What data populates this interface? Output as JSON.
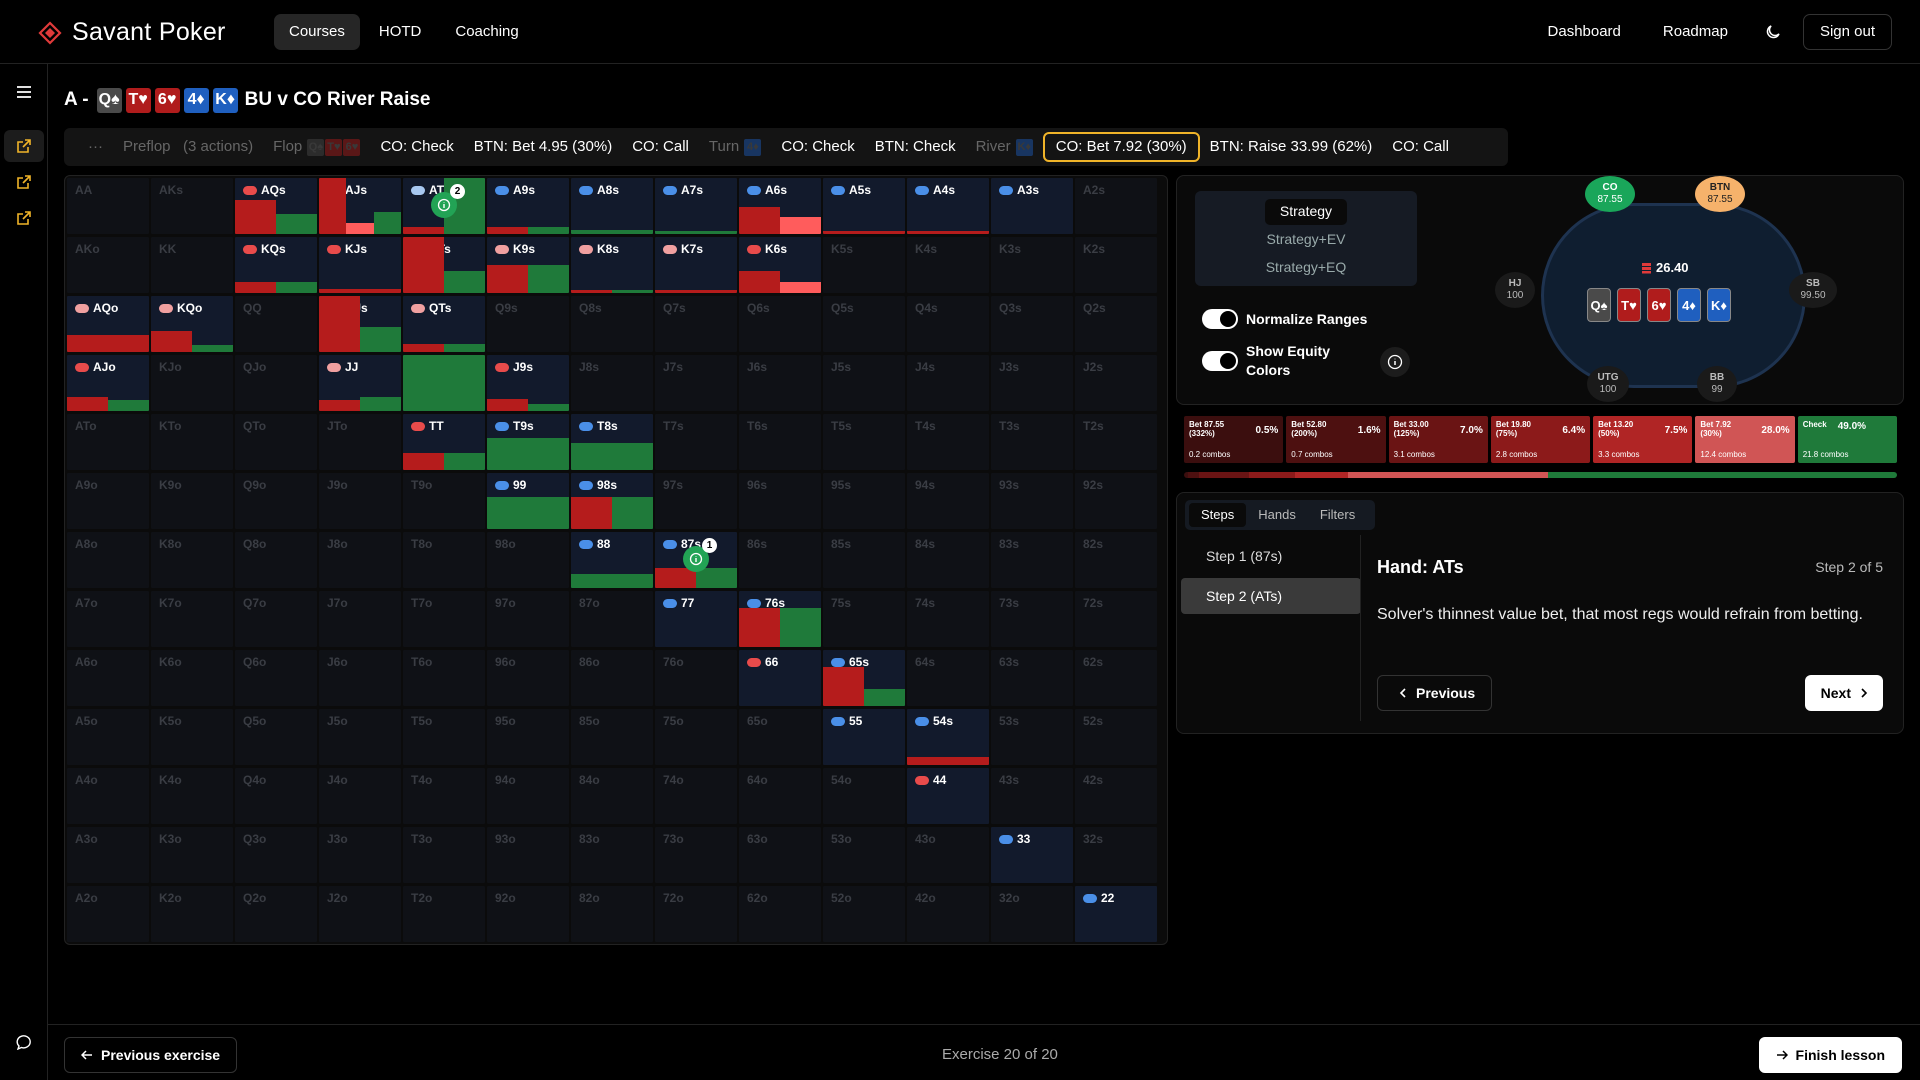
{
  "header": {
    "brand": "Savant Poker",
    "nav": [
      "Courses",
      "HOTD",
      "Coaching"
    ],
    "right_nav": [
      "Dashboard",
      "Roadmap"
    ],
    "sign_out": "Sign out"
  },
  "title": {
    "prefix": "A -",
    "cards": [
      {
        "r": "Q",
        "s": "♠",
        "c": "s"
      },
      {
        "r": "T",
        "s": "♥",
        "c": "h"
      },
      {
        "r": "6",
        "s": "♥",
        "c": "h"
      },
      {
        "r": "4",
        "s": "♦",
        "c": "d"
      },
      {
        "r": "K",
        "s": "♦",
        "c": "d"
      }
    ],
    "text": "BU v CO River Raise"
  },
  "actions": {
    "ellipsis": "···",
    "preflop": "Preflop",
    "preflop_count": "(3 actions)",
    "flop": "Flop",
    "flop_cards": [
      "Q♠",
      "T♥",
      "6♥"
    ],
    "turn": "Turn",
    "turn_card": "4♦",
    "river": "River",
    "river_card": "K♦",
    "flop_actions": [
      "CO: Check",
      "BTN: Bet 4.95 (30%)",
      "CO: Call"
    ],
    "turn_actions": [
      "CO: Check",
      "BTN: Check"
    ],
    "river_actions": [
      "CO: Bet 7.92 (30%)",
      "BTN: Raise 33.99 (62%)",
      "CO: Call"
    ]
  },
  "grid": {
    "ranks": [
      "A",
      "K",
      "Q",
      "J",
      "T",
      "9",
      "8",
      "7",
      "6",
      "5",
      "4",
      "3",
      "2"
    ],
    "cells": {
      "AQs": {
        "dot": "r",
        "bars": [
          [
            "#b51c1c",
            60
          ],
          [
            "#1f7a3a",
            35
          ]
        ]
      },
      "AJs": {
        "dot": "r",
        "bars": [
          [
            "#b51c1c",
            100
          ],
          [
            "#ff5c5c",
            20
          ],
          [
            "#1f7a3a",
            40
          ]
        ]
      },
      "ATs": {
        "dot": "lb",
        "bars": [
          [
            "#b51c1c",
            12
          ],
          [
            "#1f7a3a",
            100
          ]
        ],
        "marker": "2"
      },
      "A9s": {
        "dot": "b",
        "bars": [
          [
            "#b51c1c",
            12
          ],
          [
            "#1f7a3a",
            12
          ]
        ]
      },
      "A8s": {
        "dot": "b",
        "bars": [
          [
            "#1f7a3a",
            8
          ]
        ]
      },
      "A7s": {
        "dot": "b",
        "bars": [
          [
            "#1f7a3a",
            6
          ]
        ]
      },
      "A6s": {
        "dot": "b",
        "bars": [
          [
            "#b51c1c",
            48
          ],
          [
            "#ff5c5c",
            30
          ]
        ]
      },
      "A5s": {
        "dot": "b",
        "bars": [
          [
            "#b51c1c",
            5
          ]
        ]
      },
      "A4s": {
        "dot": "b",
        "bars": [
          [
            "#b51c1c",
            5
          ]
        ]
      },
      "A3s": {
        "dot": "b",
        "bars": []
      },
      "KQs": {
        "dot": "r",
        "bars": [
          [
            "#b51c1c",
            20
          ],
          [
            "#1f7a3a",
            20
          ]
        ]
      },
      "KJs": {
        "dot": "r",
        "bars": [
          [
            "#b51c1c",
            8
          ]
        ]
      },
      "KTs": {
        "dot": "r",
        "bars": [
          [
            "#b51c1c",
            100
          ],
          [
            "#1f7a3a",
            40
          ]
        ]
      },
      "K9s": {
        "dot": "p",
        "bars": [
          [
            "#b51c1c",
            50
          ],
          [
            "#1f7a3a",
            50
          ]
        ]
      },
      "K8s": {
        "dot": "p",
        "bars": [
          [
            "#b51c1c",
            6
          ],
          [
            "#1f7a3a",
            6
          ]
        ]
      },
      "K7s": {
        "dot": "p",
        "bars": [
          [
            "#b51c1c",
            6
          ]
        ]
      },
      "K6s": {
        "dot": "r",
        "bars": [
          [
            "#b51c1c",
            40
          ],
          [
            "#ff5c5c",
            20
          ]
        ]
      },
      "AKo": {
        "out": true
      },
      "AQo": {
        "dot": "p",
        "bars": [
          [
            "#b51c1c",
            30
          ]
        ]
      },
      "KQo": {
        "dot": "p",
        "bars": [
          [
            "#b51c1c",
            38
          ],
          [
            "#1f7a3a",
            12
          ]
        ]
      },
      "QJs": {
        "dot": "p",
        "bars": [
          [
            "#b51c1c",
            100
          ],
          [
            "#1f7a3a",
            45
          ]
        ]
      },
      "QTs": {
        "dot": "p",
        "bars": [
          [
            "#b51c1c",
            15
          ],
          [
            "#1f7a3a",
            15
          ]
        ]
      },
      "AJo": {
        "dot": "r",
        "bars": [
          [
            "#b51c1c",
            25
          ],
          [
            "#1f7a3a",
            20
          ]
        ]
      },
      "JJ": {
        "dot": "p",
        "bars": [
          [
            "#b51c1c",
            20
          ],
          [
            "#1f7a3a",
            25
          ]
        ]
      },
      "JTs": {
        "dot": "lb",
        "bars": [
          [
            "#1f7a3a",
            100
          ]
        ]
      },
      "J9s": {
        "dot": "r",
        "bars": [
          [
            "#b51c1c",
            22
          ],
          [
            "#1f7a3a",
            12
          ]
        ]
      },
      "TT": {
        "dot": "r",
        "bars": [
          [
            "#b51c1c",
            30
          ],
          [
            "#1f7a3a",
            30
          ]
        ]
      },
      "T9s": {
        "dot": "b",
        "bars": [
          [
            "#1f7a3a",
            58
          ]
        ]
      },
      "T8s": {
        "dot": "b",
        "bars": [
          [
            "#1f7a3a",
            48
          ]
        ]
      },
      "99": {
        "dot": "b",
        "bars": [
          [
            "#1f7a3a",
            58
          ]
        ]
      },
      "98s": {
        "dot": "b",
        "bars": [
          [
            "#b51c1c",
            58
          ],
          [
            "#1f7a3a",
            58
          ]
        ]
      },
      "88": {
        "dot": "b",
        "bars": [
          [
            "#1f7a3a",
            25
          ]
        ]
      },
      "87s": {
        "dot": "b",
        "bars": [
          [
            "#b51c1c",
            35
          ],
          [
            "#1f7a3a",
            35
          ]
        ],
        "marker": "1"
      },
      "77": {
        "dot": "b",
        "bars": []
      },
      "76s": {
        "dot": "b",
        "bars": [
          [
            "#b51c1c",
            70
          ],
          [
            "#1f7a3a",
            70
          ]
        ]
      },
      "66": {
        "dot": "r",
        "bars": []
      },
      "65s": {
        "dot": "b",
        "bars": [
          [
            "#b51c1c",
            70
          ],
          [
            "#1f7a3a",
            30
          ]
        ]
      },
      "55": {
        "dot": "b",
        "bars": []
      },
      "54s": {
        "dot": "b",
        "bars": [
          [
            "#b51c1c",
            14
          ]
        ]
      },
      "44": {
        "dot": "r",
        "bars": []
      },
      "33": {
        "dot": "b",
        "bars": []
      },
      "22": {
        "dot": "b",
        "bars": []
      }
    }
  },
  "strategy_panel": {
    "options": [
      "Strategy",
      "Strategy+EV",
      "Strategy+EQ"
    ],
    "normalize": "Normalize Ranges",
    "equity": "Show Equity Colors",
    "pot": "26.40",
    "board": [
      {
        "r": "Q",
        "s": "♠",
        "c": "s"
      },
      {
        "r": "T",
        "s": "♥",
        "c": "h"
      },
      {
        "r": "6",
        "s": "♥",
        "c": "h"
      },
      {
        "r": "4",
        "s": "♦",
        "c": "d"
      },
      {
        "r": "K",
        "s": "♦",
        "c": "d"
      }
    ],
    "seats": {
      "co": {
        "name": "CO",
        "stack": "87.55"
      },
      "btn": {
        "name": "BTN",
        "stack": "87.55"
      },
      "hj": {
        "name": "HJ",
        "stack": "100"
      },
      "sb": {
        "name": "SB",
        "stack": "99.50"
      },
      "utg": {
        "name": "UTG",
        "stack": "100"
      },
      "bb": {
        "name": "BB",
        "stack": "99"
      }
    }
  },
  "strategies": [
    {
      "name": "Bet 87.55",
      "sub": "(332%)",
      "pct": "0.5%",
      "combos": "0.2 combos",
      "color": "#3b0e0e"
    },
    {
      "name": "Bet 52.80",
      "sub": "(200%)",
      "pct": "1.6%",
      "combos": "0.7 combos",
      "color": "#4d1010"
    },
    {
      "name": "Bet 33.00",
      "sub": "(125%)",
      "pct": "7.0%",
      "combos": "3.1 combos",
      "color": "#6a1414"
    },
    {
      "name": "Bet 19.80",
      "sub": "(75%)",
      "pct": "6.4%",
      "combos": "2.8 combos",
      "color": "#8c1a1a"
    },
    {
      "name": "Bet 13.20",
      "sub": "(50%)",
      "pct": "7.5%",
      "combos": "3.3 combos",
      "color": "#b02525"
    },
    {
      "name": "Bet 7.92",
      "sub": "(30%)",
      "pct": "28.0%",
      "combos": "12.4 combos",
      "color": "#d05555"
    },
    {
      "name": "Check",
      "sub": "",
      "pct": "49.0%",
      "combos": "21.8 combos",
      "color": "#1f7a3a"
    }
  ],
  "freq_bar": [
    {
      "c": "#3b0e0e",
      "v": 0.5
    },
    {
      "c": "#4d1010",
      "v": 1.6
    },
    {
      "c": "#6a1414",
      "v": 7.0
    },
    {
      "c": "#8c1a1a",
      "v": 6.4
    },
    {
      "c": "#b02525",
      "v": 7.5
    },
    {
      "c": "#d05555",
      "v": 28.0
    },
    {
      "c": "#1f7a3a",
      "v": 49.0
    }
  ],
  "steps": {
    "tabs": [
      "Steps",
      "Hands",
      "Filters"
    ],
    "items": [
      "Step 1 (87s)",
      "Step 2 (ATs)"
    ],
    "hand": "Hand: ATs",
    "step_of": "Step 2 of 5",
    "desc": "Solver's thinnest value bet, that most regs would refrain from betting.",
    "prev": "Previous",
    "next": "Next"
  },
  "footer": {
    "prev": "Previous exercise",
    "exercise": "Exercise 20 of 20",
    "finish": "Finish lesson"
  },
  "colors": {
    "accent": "#f0b429",
    "green": "#1f7a3a",
    "red": "#b51c1c"
  }
}
